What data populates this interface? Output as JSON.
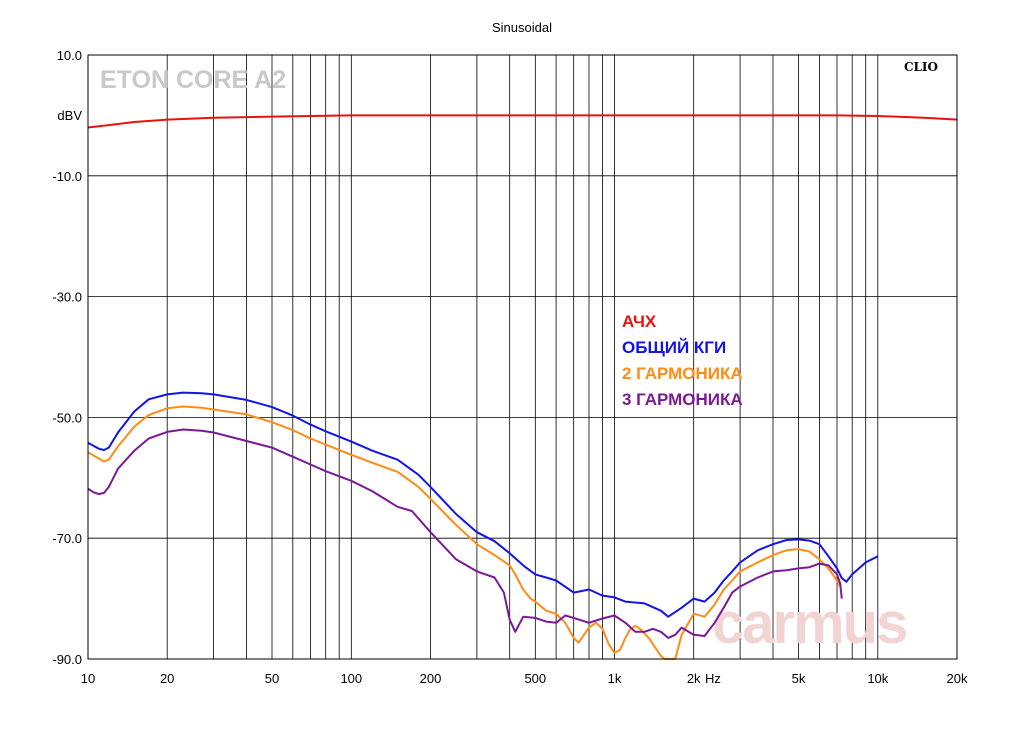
{
  "chart_data": {
    "type": "line",
    "title": "Sinusoidal",
    "brand_label": "ETON CORE A2",
    "software_label": "CLIO",
    "watermark": "carmus",
    "x_scale": "log",
    "xlim": [
      10,
      20000
    ],
    "ylim": [
      -90,
      10
    ],
    "y_unit_label": "dBV",
    "x_unit_label": "Hz",
    "grid": true,
    "legend_position": "center-right",
    "x_ticks": [
      {
        "value": 10,
        "label": "10"
      },
      {
        "value": 20,
        "label": "20"
      },
      {
        "value": 50,
        "label": "50"
      },
      {
        "value": 100,
        "label": "100"
      },
      {
        "value": 200,
        "label": "200"
      },
      {
        "value": 500,
        "label": "500"
      },
      {
        "value": 1000,
        "label": "1k"
      },
      {
        "value": 2000,
        "label": "2k"
      },
      {
        "value": 5000,
        "label": "5k"
      },
      {
        "value": 10000,
        "label": "10k"
      },
      {
        "value": 20000,
        "label": "20k"
      }
    ],
    "y_ticks": [
      {
        "value": 10,
        "label": "10.0"
      },
      {
        "value": -10,
        "label": "-10.0"
      },
      {
        "value": -30,
        "label": "-30.0"
      },
      {
        "value": -50,
        "label": "-50.0"
      },
      {
        "value": -70,
        "label": "-70.0"
      },
      {
        "value": -90,
        "label": "-90.0"
      }
    ],
    "series": [
      {
        "name": "АЧХ",
        "color": "#e8120f",
        "points": [
          [
            10,
            -2.0
          ],
          [
            12,
            -1.6
          ],
          [
            15,
            -1.1
          ],
          [
            20,
            -0.7
          ],
          [
            30,
            -0.4
          ],
          [
            50,
            -0.2
          ],
          [
            100,
            0
          ],
          [
            200,
            0
          ],
          [
            500,
            0
          ],
          [
            1000,
            0
          ],
          [
            2000,
            0
          ],
          [
            5000,
            0
          ],
          [
            7000,
            0
          ],
          [
            10000,
            -0.1
          ],
          [
            15000,
            -0.4
          ],
          [
            20000,
            -0.7
          ]
        ]
      },
      {
        "name": "ОБЩИЙ КГИ",
        "color": "#1414e6",
        "points": [
          [
            10,
            -54.2
          ],
          [
            11,
            -55.2
          ],
          [
            11.5,
            -55.4
          ],
          [
            12,
            -55.0
          ],
          [
            13,
            -52.5
          ],
          [
            15,
            -49.0
          ],
          [
            17,
            -47.0
          ],
          [
            20,
            -46.2
          ],
          [
            23,
            -45.9
          ],
          [
            27,
            -46.0
          ],
          [
            30,
            -46.2
          ],
          [
            40,
            -47.1
          ],
          [
            50,
            -48.3
          ],
          [
            60,
            -49.7
          ],
          [
            70,
            -51.2
          ],
          [
            80,
            -52.3
          ],
          [
            100,
            -54.0
          ],
          [
            120,
            -55.5
          ],
          [
            150,
            -57.0
          ],
          [
            180,
            -59.5
          ],
          [
            200,
            -61.5
          ],
          [
            250,
            -66.0
          ],
          [
            300,
            -69.0
          ],
          [
            350,
            -70.5
          ],
          [
            400,
            -72.5
          ],
          [
            450,
            -74.5
          ],
          [
            500,
            -76.0
          ],
          [
            550,
            -76.5
          ],
          [
            600,
            -77.0
          ],
          [
            700,
            -79.0
          ],
          [
            800,
            -78.5
          ],
          [
            900,
            -79.5
          ],
          [
            1000,
            -79.8
          ],
          [
            1100,
            -80.5
          ],
          [
            1300,
            -80.8
          ],
          [
            1500,
            -82.0
          ],
          [
            1600,
            -83.0
          ],
          [
            1800,
            -81.5
          ],
          [
            2000,
            -80.0
          ],
          [
            2200,
            -80.5
          ],
          [
            2400,
            -79.0
          ],
          [
            2600,
            -77.0
          ],
          [
            2800,
            -75.5
          ],
          [
            3000,
            -74.0
          ],
          [
            3500,
            -72.0
          ],
          [
            4000,
            -71.0
          ],
          [
            4500,
            -70.3
          ],
          [
            5000,
            -70.2
          ],
          [
            5500,
            -70.4
          ],
          [
            6000,
            -71.0
          ],
          [
            6500,
            -73.0
          ],
          [
            7000,
            -75.0
          ],
          [
            7300,
            -76.6
          ],
          [
            7600,
            -77.2
          ],
          [
            8000,
            -76.0
          ],
          [
            9000,
            -74.0
          ],
          [
            10000,
            -73.0
          ]
        ]
      },
      {
        "name": "2 ГАРМОНИКА",
        "color": "#ff8c14",
        "points": [
          [
            10,
            -55.8
          ],
          [
            11,
            -56.8
          ],
          [
            11.5,
            -57.3
          ],
          [
            12,
            -57.0
          ],
          [
            13,
            -54.8
          ],
          [
            15,
            -51.5
          ],
          [
            17,
            -49.6
          ],
          [
            20,
            -48.5
          ],
          [
            23,
            -48.2
          ],
          [
            27,
            -48.4
          ],
          [
            30,
            -48.7
          ],
          [
            40,
            -49.5
          ],
          [
            50,
            -50.8
          ],
          [
            60,
            -52.1
          ],
          [
            70,
            -53.5
          ],
          [
            80,
            -54.5
          ],
          [
            100,
            -56.2
          ],
          [
            120,
            -57.5
          ],
          [
            150,
            -59.0
          ],
          [
            180,
            -61.5
          ],
          [
            200,
            -63.5
          ],
          [
            250,
            -67.8
          ],
          [
            300,
            -71.0
          ],
          [
            350,
            -72.8
          ],
          [
            400,
            -74.5
          ],
          [
            420,
            -76.0
          ],
          [
            450,
            -78.5
          ],
          [
            480,
            -80.0
          ],
          [
            500,
            -80.5
          ],
          [
            550,
            -82.0
          ],
          [
            600,
            -82.5
          ],
          [
            650,
            -84.0
          ],
          [
            700,
            -86.5
          ],
          [
            730,
            -87.3
          ],
          [
            800,
            -84.8
          ],
          [
            850,
            -84.0
          ],
          [
            900,
            -85.0
          ],
          [
            950,
            -87.5
          ],
          [
            1000,
            -89.0
          ],
          [
            1050,
            -88.5
          ],
          [
            1100,
            -86.5
          ],
          [
            1150,
            -85.0
          ],
          [
            1200,
            -84.5
          ],
          [
            1250,
            -85.0
          ],
          [
            1350,
            -86.5
          ],
          [
            1500,
            -89.5
          ],
          [
            1550,
            -90.0
          ],
          [
            1700,
            -90.0
          ],
          [
            1800,
            -86.0
          ],
          [
            2000,
            -82.5
          ],
          [
            2200,
            -83.0
          ],
          [
            2400,
            -81.0
          ],
          [
            2600,
            -78.5
          ],
          [
            2800,
            -77.0
          ],
          [
            3000,
            -75.5
          ],
          [
            3500,
            -74.0
          ],
          [
            4000,
            -72.8
          ],
          [
            4500,
            -72.0
          ],
          [
            5000,
            -71.8
          ],
          [
            5500,
            -72.2
          ],
          [
            6000,
            -73.5
          ],
          [
            6500,
            -75.0
          ],
          [
            7000,
            -77.0
          ],
          [
            7200,
            -78.0
          ]
        ]
      },
      {
        "name": "3 ГАРМОНИКА",
        "color": "#7a1a96",
        "points": [
          [
            10,
            -61.8
          ],
          [
            10.5,
            -62.4
          ],
          [
            11,
            -62.7
          ],
          [
            11.5,
            -62.5
          ],
          [
            12,
            -61.5
          ],
          [
            13,
            -58.5
          ],
          [
            15,
            -55.5
          ],
          [
            17,
            -53.5
          ],
          [
            20,
            -52.4
          ],
          [
            23,
            -52.0
          ],
          [
            27,
            -52.2
          ],
          [
            30,
            -52.5
          ],
          [
            40,
            -53.9
          ],
          [
            50,
            -55.0
          ],
          [
            60,
            -56.5
          ],
          [
            70,
            -57.8
          ],
          [
            80,
            -58.9
          ],
          [
            100,
            -60.5
          ],
          [
            120,
            -62.2
          ],
          [
            150,
            -64.8
          ],
          [
            170,
            -65.5
          ],
          [
            200,
            -69.0
          ],
          [
            250,
            -73.5
          ],
          [
            300,
            -75.5
          ],
          [
            350,
            -76.5
          ],
          [
            380,
            -79.0
          ],
          [
            400,
            -83.5
          ],
          [
            420,
            -85.5
          ],
          [
            450,
            -83.0
          ],
          [
            500,
            -83.2
          ],
          [
            550,
            -83.8
          ],
          [
            600,
            -84.0
          ],
          [
            650,
            -82.8
          ],
          [
            700,
            -83.2
          ],
          [
            800,
            -84.0
          ],
          [
            900,
            -83.3
          ],
          [
            1000,
            -82.8
          ],
          [
            1100,
            -84.0
          ],
          [
            1200,
            -85.5
          ],
          [
            1300,
            -85.5
          ],
          [
            1400,
            -85.0
          ],
          [
            1500,
            -85.5
          ],
          [
            1600,
            -86.5
          ],
          [
            1700,
            -86.0
          ],
          [
            1800,
            -84.8
          ],
          [
            2000,
            -86.0
          ],
          [
            2200,
            -86.2
          ],
          [
            2400,
            -84.0
          ],
          [
            2600,
            -81.5
          ],
          [
            2800,
            -79.0
          ],
          [
            3000,
            -78.0
          ],
          [
            3500,
            -76.5
          ],
          [
            4000,
            -75.5
          ],
          [
            4500,
            -75.3
          ],
          [
            5000,
            -75.0
          ],
          [
            5500,
            -74.8
          ],
          [
            6000,
            -74.2
          ],
          [
            6500,
            -74.5
          ],
          [
            7000,
            -76.0
          ],
          [
            7200,
            -77.5
          ],
          [
            7300,
            -80.0
          ]
        ]
      }
    ]
  }
}
